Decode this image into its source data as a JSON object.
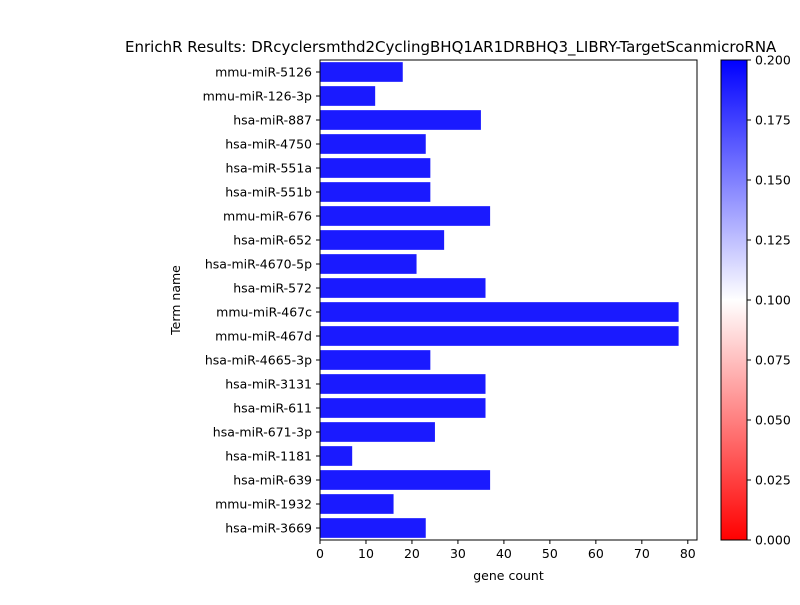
{
  "chart_data": {
    "type": "bar",
    "orientation": "horizontal",
    "title": "EnrichR Results: DRcyclersmthd2CyclingBHQ1AR1DRBHQ3_LIBRY-TargetScanmicroRNA",
    "xlabel": "gene count",
    "ylabel": "Term name",
    "xlim": [
      0,
      82
    ],
    "xticks": [
      0,
      10,
      20,
      30,
      40,
      50,
      60,
      70,
      80
    ],
    "grid": false,
    "bar_color": "#1a1aff",
    "categories": [
      "mmu-miR-5126",
      "mmu-miR-126-3p",
      "hsa-miR-887",
      "hsa-miR-4750",
      "hsa-miR-551a",
      "hsa-miR-551b",
      "mmu-miR-676",
      "hsa-miR-652",
      "hsa-miR-4670-5p",
      "hsa-miR-572",
      "mmu-miR-467c",
      "mmu-miR-467d",
      "hsa-miR-4665-3p",
      "hsa-miR-3131",
      "hsa-miR-611",
      "hsa-miR-671-3p",
      "hsa-miR-1181",
      "hsa-miR-639",
      "mmu-miR-1932",
      "hsa-miR-3669"
    ],
    "values": [
      18,
      12,
      35,
      23,
      24,
      24,
      37,
      27,
      21,
      36,
      78,
      78,
      24,
      36,
      36,
      25,
      7,
      37,
      16,
      23
    ],
    "colorbar": {
      "range": [
        0.0,
        0.2
      ],
      "ticks": [
        "0.000",
        "0.025",
        "0.050",
        "0.075",
        "0.100",
        "0.125",
        "0.150",
        "0.175",
        "0.200"
      ],
      "colors": [
        "#ff0000",
        "#ffffff",
        "#0000ff"
      ]
    }
  }
}
